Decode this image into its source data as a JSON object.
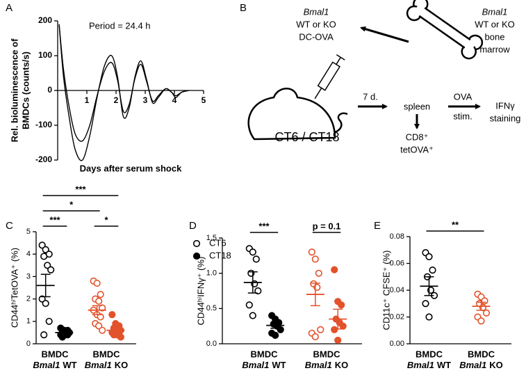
{
  "chart_data": [
    {
      "type": "line",
      "panel": "A",
      "ylabel": [
        "Rel. bioluminescence of",
        "BMDCs (counts/s)"
      ],
      "xlabel": "Days after serum shock",
      "annotation": "Period = 24.4 h",
      "xlim": [
        0,
        5
      ],
      "xticks": [
        1,
        2,
        3,
        4,
        5
      ],
      "ylim": [
        -200,
        200
      ],
      "yticks": [
        -200,
        -100,
        0,
        100,
        200
      ],
      "x": [
        0.05,
        0.2,
        0.4,
        0.6,
        0.85,
        1.1,
        1.35,
        1.6,
        1.85,
        2.05,
        2.25,
        2.45,
        2.65,
        2.85,
        3.05,
        3.25,
        3.45,
        3.7,
        3.9,
        4.05,
        4.25,
        4.5
      ],
      "series": [
        {
          "color": "#000000",
          "values": [
            190,
            40,
            -80,
            -170,
            -200,
            -130,
            -20,
            70,
            100,
            40,
            -75,
            -50,
            40,
            85,
            30,
            -35,
            -20,
            5,
            -5,
            -20,
            -5,
            0
          ]
        },
        {
          "color": "#000000",
          "values": [
            190,
            60,
            -50,
            -125,
            -145,
            -100,
            -15,
            55,
            80,
            30,
            -60,
            -40,
            35,
            75,
            25,
            -30,
            -15,
            5,
            -5,
            -15,
            -5,
            0
          ]
        }
      ]
    },
    {
      "type": "dotplot",
      "panel": "C",
      "ylabel": "CD44ʰⁱTetOVA⁺ (%)",
      "ylim": [
        0,
        5
      ],
      "yticks": [
        0,
        1,
        2,
        3,
        4,
        5
      ],
      "categories": [
        [
          "BMDC",
          "Bmal1",
          "WT"
        ],
        [
          "BMDC",
          "Bmal1",
          "KO"
        ]
      ],
      "category_colors": [
        "#000000",
        "#e2522b"
      ],
      "legend": true,
      "series": [
        {
          "name": "CT6",
          "marker": "open",
          "values": [
            [
              4.4,
              4.2,
              4.0,
              3.9,
              3.5,
              3.3,
              2.0,
              1.8,
              1.0,
              0.4
            ],
            [
              2.8,
              2.7,
              2.2,
              2.0,
              1.9,
              1.6,
              1.5,
              1.3,
              1.2,
              0.9,
              0.8,
              0.6
            ]
          ],
          "mean": [
            2.6,
            1.5
          ],
          "sem": [
            0.5,
            0.2
          ]
        },
        {
          "name": "CT18",
          "marker": "filled",
          "values": [
            [
              0.7,
              0.6,
              0.6,
              0.5,
              0.5,
              0.5,
              0.4,
              0.4,
              0.4,
              0.3
            ],
            [
              1.3,
              0.9,
              0.8,
              0.7,
              0.6,
              0.6,
              0.5,
              0.5,
              0.4,
              0.4,
              0.4,
              0.3
            ]
          ],
          "mean": [
            0.5,
            0.6
          ],
          "sem": [
            0.04,
            0.08
          ]
        }
      ],
      "comparisons": [
        {
          "label": "***",
          "between": [
            0,
            1
          ]
        },
        {
          "label": "*",
          "between": [
            2,
            3
          ]
        },
        {
          "label": "*",
          "between": [
            0,
            2
          ]
        },
        {
          "label": "***",
          "between": [
            0,
            3
          ]
        }
      ]
    },
    {
      "type": "dotplot",
      "panel": "D",
      "ylabel": "CD44ʰⁱIFNγ⁺ (%)",
      "ylim": [
        0,
        1.5
      ],
      "yticks": [
        {
          "value": 0,
          "label": "0.0"
        },
        {
          "value": 0.5,
          "label": "0.5"
        },
        {
          "value": 1,
          "label": "1.0"
        },
        {
          "value": 1.5,
          "label": "1.5"
        }
      ],
      "categories": [
        [
          "BMDC",
          "Bmal1",
          "WT"
        ],
        [
          "BMDC",
          "Bmal1",
          "KO"
        ]
      ],
      "category_colors": [
        "#000000",
        "#e2522b"
      ],
      "series": [
        {
          "marker": "open",
          "values": [
            [
              1.35,
              1.3,
              1.2,
              1.0,
              0.85,
              0.75,
              0.55,
              0.4
            ],
            [
              1.3,
              1.2,
              1.0,
              0.85,
              0.8,
              0.2,
              0.15,
              0.1
            ]
          ],
          "mean": [
            0.87,
            0.7
          ],
          "sem": [
            0.15,
            0.16
          ]
        },
        {
          "marker": "filled",
          "values": [
            [
              0.4,
              0.35,
              0.3,
              0.28,
              0.25,
              0.2,
              0.15,
              0.12
            ],
            [
              1.05,
              0.6,
              0.55,
              0.35,
              0.3,
              0.25,
              0.2,
              0.05
            ]
          ],
          "mean": [
            0.26,
            0.35
          ],
          "sem": [
            0.04,
            0.14
          ]
        }
      ],
      "comparisons": [
        {
          "label": "***",
          "between": [
            0,
            1
          ]
        },
        {
          "label": "p = 0.1",
          "between": [
            2,
            3
          ]
        }
      ]
    },
    {
      "type": "dotplot",
      "panel": "E",
      "ylabel": "CD11c⁺ CFSE⁺ (%)",
      "ylim": [
        0,
        0.08
      ],
      "yticks": [
        {
          "value": 0,
          "label": "0.00"
        },
        {
          "value": 0.02,
          "label": "0.02"
        },
        {
          "value": 0.04,
          "label": "0.04"
        },
        {
          "value": 0.06,
          "label": "0.06"
        },
        {
          "value": 0.08,
          "label": "0.08"
        }
      ],
      "categories": [
        [
          "BMDC",
          "Bmal1",
          "WT"
        ],
        [
          "BMDC",
          "Bmal1",
          "KO"
        ]
      ],
      "category_colors": [
        "#000000",
        "#e2522b"
      ],
      "series": [
        {
          "marker": "open",
          "values": [
            [
              0.068,
              0.065,
              0.055,
              0.05,
              0.04,
              0.036,
              0.03,
              0.02
            ],
            [
              0.037,
              0.035,
              0.032,
              0.03,
              0.027,
              0.023,
              0.02,
              0.017
            ]
          ],
          "mean": [
            0.043,
            0.028
          ],
          "sem": [
            0.007,
            0.003
          ]
        }
      ],
      "comparisons": [
        {
          "label": "**",
          "between": [
            0,
            1
          ]
        }
      ]
    }
  ],
  "diagram": {
    "panel": "B",
    "dc_label": [
      "Bmal1",
      "WT or KO",
      "DC-OVA"
    ],
    "bone_label": [
      "Bmal1",
      "WT or KO",
      "bone",
      "marrow"
    ],
    "mouse_label": "CT6 / CT18",
    "interval": "7 d.",
    "organ": "spleen",
    "stim_label": [
      "OVA",
      "stim."
    ],
    "readout": [
      "IFNγ",
      "staining"
    ],
    "tetramer": [
      "CD8⁺",
      "tetOVA⁺"
    ]
  }
}
